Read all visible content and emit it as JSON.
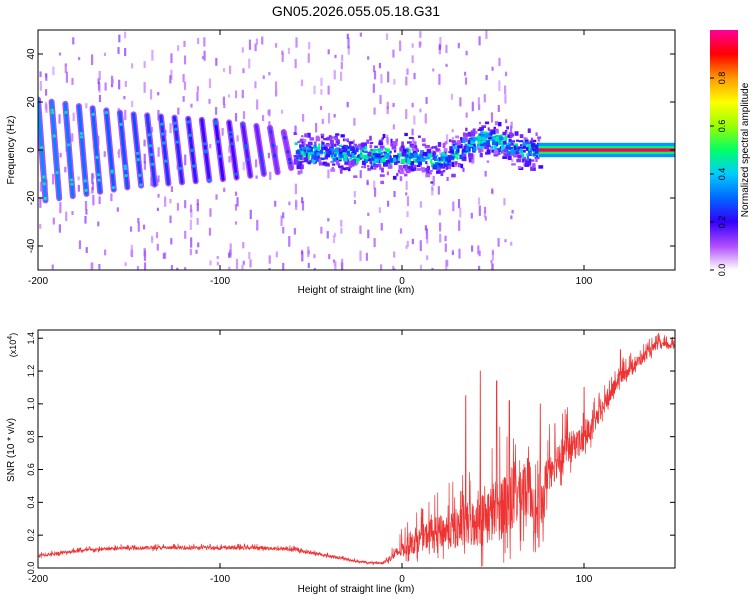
{
  "title": "GN05.2026.055.05.18.G31",
  "chart_data": [
    {
      "type": "heatmap",
      "title": "GN05.2026.055.05.18.G31",
      "xlabel": "Height of straight line (km)",
      "ylabel": "Frequency (Hz)",
      "xlim": [
        -200,
        150
      ],
      "ylim": [
        -50,
        50
      ],
      "xticks": [
        -200,
        -100,
        0,
        100
      ],
      "yticks": [
        -40,
        -20,
        0,
        20,
        40
      ],
      "colorbar": {
        "label": "Normalized spectral amplitude",
        "range": [
          0,
          1
        ],
        "ticks": [
          0.0,
          0.2,
          0.4,
          0.6,
          0.8
        ],
        "tick_labels": [
          "0.0",
          "0.2",
          "0.4",
          "0.6",
          "0.8"
        ],
        "colors": [
          "#ffffff",
          "#b04dff",
          "#3300ff",
          "#0066ff",
          "#00ccff",
          "#00ff66",
          "#99ff00",
          "#ffff00",
          "#ff9900",
          "#ff0000",
          "#ff0099"
        ]
      },
      "features": {
        "ramps": {
          "x_start": -200,
          "x_end": -60,
          "spacing_km": 7.5,
          "amplitudes_hz": [
            [
              -200,
              21
            ],
            [
              -150,
              15
            ],
            [
              -100,
              12
            ],
            [
              -70,
              9
            ],
            [
              -60,
              6
            ]
          ],
          "values": [
            [
              -200,
              0.34
            ],
            [
              -150,
              0.28
            ],
            [
              -100,
              0.2
            ],
            [
              -60,
              0.12
            ]
          ]
        },
        "scatter_band": {
          "x_start": -60,
          "x_end": 75,
          "center_hz": [
            [
              -60,
              0
            ],
            [
              0,
              -2
            ],
            [
              20,
              -4
            ],
            [
              45,
              6
            ],
            [
              60,
              2
            ],
            [
              75,
              0
            ]
          ],
          "spread_hz": 8
        },
        "steady_line": {
          "x_start": 75,
          "x_end": 150,
          "frequency_hz": 0,
          "value": 0.95
        }
      }
    },
    {
      "type": "line",
      "xlabel": "Height of straight line (km)",
      "ylabel": "SNR (10 * v/v)",
      "multiplier_label": "(x10",
      "multiplier_exponent": "4",
      "xlim": [
        -200,
        150
      ],
      "ylim": [
        0,
        1.45
      ],
      "xticks": [
        -200,
        -100,
        0,
        100
      ],
      "yticks": [
        0.0,
        0.2,
        0.4,
        0.6,
        0.8,
        1.0,
        1.2,
        1.4
      ],
      "ytick_labels": [
        "0.0",
        "0.2",
        "0.4",
        "0.6",
        "0.8",
        "1.0",
        "1.2",
        "1.4"
      ],
      "series": [
        {
          "name": "SNR",
          "color": "#ee3333",
          "baseline": [
            [
              -200,
              0.07
            ],
            [
              -180,
              0.1
            ],
            [
              -150,
              0.12
            ],
            [
              -120,
              0.12
            ],
            [
              -80,
              0.12
            ],
            [
              -60,
              0.11
            ],
            [
              -40,
              0.07
            ],
            [
              -20,
              0.03
            ],
            [
              -10,
              0.03
            ],
            [
              0,
              0.1
            ],
            [
              15,
              0.18
            ],
            [
              30,
              0.2
            ],
            [
              45,
              0.25
            ],
            [
              60,
              0.35
            ],
            [
              70,
              0.45
            ],
            [
              75,
              0.2
            ],
            [
              80,
              0.55
            ],
            [
              90,
              0.7
            ],
            [
              100,
              0.75
            ],
            [
              110,
              0.95
            ],
            [
              120,
              1.15
            ],
            [
              130,
              1.25
            ],
            [
              140,
              1.35
            ],
            [
              150,
              1.35
            ]
          ],
          "noise": [
            [
              -200,
              0.02
            ],
            [
              -60,
              0.02
            ],
            [
              -10,
              0.01
            ],
            [
              0,
              0.1
            ],
            [
              20,
              0.2
            ],
            [
              40,
              0.3
            ],
            [
              60,
              0.45
            ],
            [
              75,
              0.3
            ],
            [
              90,
              0.2
            ],
            [
              110,
              0.1
            ],
            [
              150,
              0.04
            ]
          ],
          "peaks": [
            [
              35,
              1.05
            ],
            [
              43,
              1.2
            ],
            [
              52,
              1.14
            ],
            [
              59,
              1.02
            ],
            [
              76,
              1.0
            ],
            [
              84,
              0.88
            ],
            [
              100,
              1.1
            ],
            [
              120,
              1.33
            ],
            [
              141,
              1.43
            ]
          ]
        }
      ]
    }
  ]
}
